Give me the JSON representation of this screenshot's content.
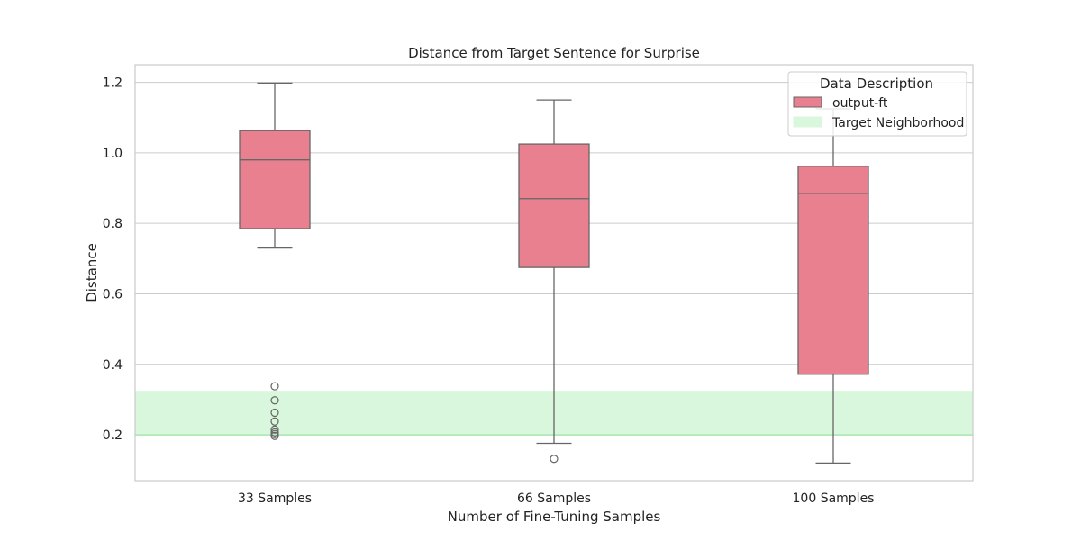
{
  "chart_data": {
    "type": "box",
    "title": "Distance from Target Sentence for Surprise",
    "xlabel": "Number of Fine-Tuning Samples",
    "ylabel": "Distance",
    "categories": [
      "33 Samples",
      "66 Samples",
      "100 Samples"
    ],
    "ylim": [
      0.07,
      1.25
    ],
    "yticks": [
      0.2,
      0.4,
      0.6,
      0.8,
      1.0,
      1.2
    ],
    "ytick_labels": [
      "0.2",
      "0.4",
      "0.6",
      "0.8",
      "1.0",
      "1.2"
    ],
    "grid": true,
    "series": [
      {
        "name": "output-ft",
        "color": "#e8808f",
        "boxes": [
          {
            "category": "33 Samples",
            "whisker_low": 0.73,
            "q1": 0.785,
            "median": 0.98,
            "q3": 1.063,
            "whisker_high": 1.198,
            "outliers": [
              0.338,
              0.298,
              0.263,
              0.238,
              0.215,
              0.207,
              0.202,
              0.197
            ]
          },
          {
            "category": "66 Samples",
            "whisker_low": 0.176,
            "q1": 0.675,
            "median": 0.87,
            "q3": 1.025,
            "whisker_high": 1.15,
            "outliers": [
              0.132
            ]
          },
          {
            "category": "100 Samples",
            "whisker_low": 0.12,
            "q1": 0.372,
            "median": 0.885,
            "q3": 0.962,
            "whisker_high": 1.125,
            "outliers": []
          }
        ]
      }
    ],
    "target_neighborhood": {
      "name": "Target Neighborhood",
      "low": 0.2,
      "high": 0.325,
      "color": "#d9f7dc",
      "edge": "#a8e6b0"
    },
    "legend": {
      "title": "Data Description",
      "position": "top-right",
      "entries": [
        "output-ft",
        "Target Neighborhood"
      ]
    }
  }
}
